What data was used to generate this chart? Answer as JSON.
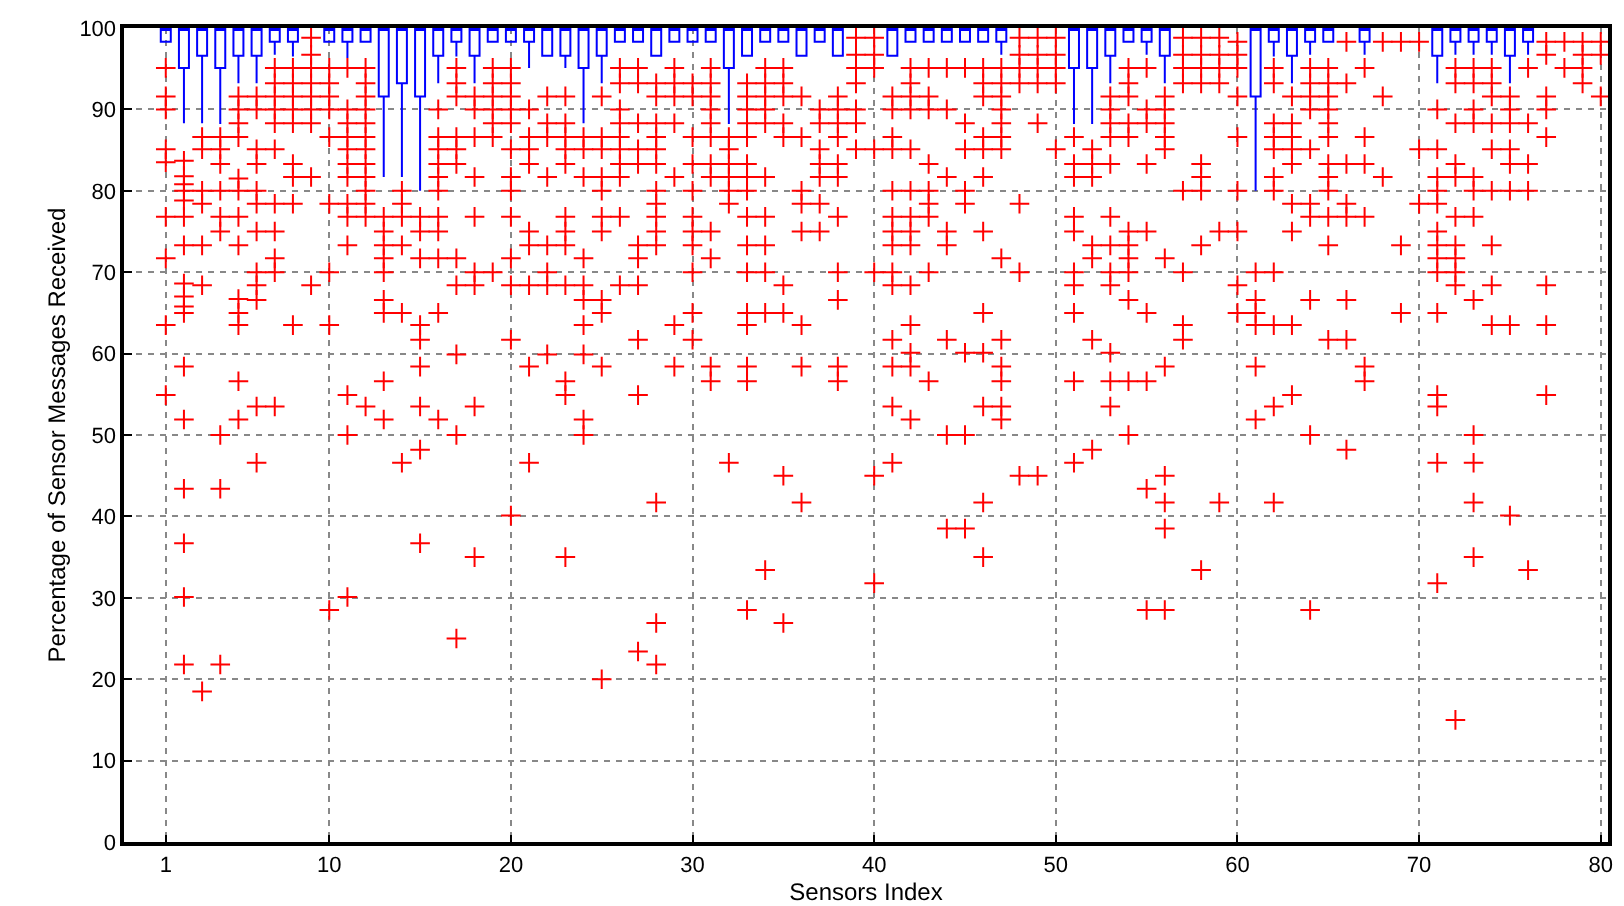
{
  "chart_data": {
    "type": "box",
    "xlabel": "Sensors Index",
    "ylabel": "Percentage of Sensor Messages Received",
    "xlim": [
      -1.3,
      80.4
    ],
    "xticks": [
      1,
      10,
      20,
      30,
      40,
      50,
      60,
      70,
      80
    ],
    "ylim": [
      0,
      100
    ],
    "yticks": [
      0,
      10,
      20,
      30,
      40,
      50,
      60,
      70,
      80,
      90,
      100
    ],
    "grid": true,
    "marker": "cross",
    "series": [
      {
        "color": "#0000ff",
        "x": [
          1,
          2,
          3,
          4,
          5,
          6,
          7,
          8,
          10,
          11,
          12,
          13,
          14,
          15,
          16,
          17,
          18,
          19,
          20,
          21,
          22,
          23,
          24,
          25,
          26,
          27,
          28,
          29,
          30,
          31,
          32,
          33,
          34,
          35,
          36,
          37,
          38,
          41,
          42,
          43,
          44,
          45,
          46,
          47,
          51,
          52,
          53,
          54,
          55,
          56,
          61,
          62,
          63,
          64,
          65,
          67,
          71,
          72,
          73,
          74,
          75,
          76
        ],
        "boxes": [
          {
            "low": 98.3,
            "q1": 98.3,
            "median": 100,
            "q3": 100
          },
          {
            "low": 88.3,
            "q1": 95.1,
            "median": 100,
            "q3": 100
          },
          {
            "low": 88.3,
            "q1": 96.6,
            "median": 100,
            "q3": 100
          },
          {
            "low": 88.2,
            "q1": 95.1,
            "median": 100,
            "q3": 100
          },
          {
            "low": 93.2,
            "q1": 96.6,
            "median": 100,
            "q3": 100
          },
          {
            "low": 93.2,
            "q1": 96.6,
            "median": 100,
            "q3": 100
          },
          {
            "low": 96.7,
            "q1": 98.3,
            "median": 100,
            "q3": 100
          },
          {
            "low": 96.5,
            "q1": 98.3,
            "median": 100,
            "q3": 100
          },
          {
            "low": 98.3,
            "q1": 98.3,
            "median": 100,
            "q3": 100
          },
          {
            "low": 96.3,
            "q1": 98.3,
            "median": 100,
            "q3": 100
          },
          {
            "low": 98.3,
            "q1": 98.3,
            "median": 100,
            "q3": 100
          },
          {
            "low": 81.7,
            "q1": 91.6,
            "median": 100,
            "q3": 100
          },
          {
            "low": 81.7,
            "q1": 93.2,
            "median": 100,
            "q3": 100
          },
          {
            "low": 80.0,
            "q1": 91.6,
            "median": 100,
            "q3": 100
          },
          {
            "low": 93.2,
            "q1": 96.6,
            "median": 100,
            "q3": 100
          },
          {
            "low": 96.5,
            "q1": 98.3,
            "median": 100,
            "q3": 100
          },
          {
            "low": 93.2,
            "q1": 96.6,
            "median": 100,
            "q3": 100
          },
          {
            "low": 98.3,
            "q1": 98.3,
            "median": 100,
            "q3": 100
          },
          {
            "low": 98.3,
            "q1": 98.3,
            "median": 100,
            "q3": 100
          },
          {
            "low": 95.1,
            "q1": 98.3,
            "median": 100,
            "q3": 100
          },
          {
            "low": 96.6,
            "q1": 96.6,
            "median": 100,
            "q3": 100
          },
          {
            "low": 95.1,
            "q1": 96.6,
            "median": 100,
            "q3": 100
          },
          {
            "low": 88.3,
            "q1": 95.1,
            "median": 100,
            "q3": 100
          },
          {
            "low": 93.2,
            "q1": 96.6,
            "median": 100,
            "q3": 100
          },
          {
            "low": 98.3,
            "q1": 98.3,
            "median": 100,
            "q3": 100
          },
          {
            "low": 98.3,
            "q1": 98.3,
            "median": 100,
            "q3": 100
          },
          {
            "low": 96.6,
            "q1": 96.6,
            "median": 100,
            "q3": 100
          },
          {
            "low": 98.3,
            "q1": 98.3,
            "median": 100,
            "q3": 100
          },
          {
            "low": 98.3,
            "q1": 98.3,
            "median": 100,
            "q3": 100
          },
          {
            "low": 98.3,
            "q1": 98.3,
            "median": 100,
            "q3": 100
          },
          {
            "low": 88.2,
            "q1": 95.1,
            "median": 100,
            "q3": 100
          },
          {
            "low": 96.6,
            "q1": 96.6,
            "median": 100,
            "q3": 100
          },
          {
            "low": 98.3,
            "q1": 98.3,
            "median": 100,
            "q3": 100
          },
          {
            "low": 98.3,
            "q1": 98.3,
            "median": 100,
            "q3": 100
          },
          {
            "low": 96.6,
            "q1": 96.6,
            "median": 100,
            "q3": 100
          },
          {
            "low": 98.3,
            "q1": 98.3,
            "median": 100,
            "q3": 100
          },
          {
            "low": 96.6,
            "q1": 96.6,
            "median": 100,
            "q3": 100
          },
          {
            "low": 96.6,
            "q1": 96.6,
            "median": 100,
            "q3": 100
          },
          {
            "low": 98.3,
            "q1": 98.3,
            "median": 100,
            "q3": 100
          },
          {
            "low": 98.3,
            "q1": 98.3,
            "median": 100,
            "q3": 100
          },
          {
            "low": 98.3,
            "q1": 98.3,
            "median": 100,
            "q3": 100
          },
          {
            "low": 98.3,
            "q1": 98.3,
            "median": 100,
            "q3": 100
          },
          {
            "low": 98.3,
            "q1": 98.3,
            "median": 100,
            "q3": 100
          },
          {
            "low": 96.7,
            "q1": 98.3,
            "median": 100,
            "q3": 100
          },
          {
            "low": 88.2,
            "q1": 95.1,
            "median": 100,
            "q3": 100
          },
          {
            "low": 88.2,
            "q1": 95.1,
            "median": 100,
            "q3": 100
          },
          {
            "low": 93.2,
            "q1": 96.6,
            "median": 100,
            "q3": 100
          },
          {
            "low": 98.3,
            "q1": 98.3,
            "median": 100,
            "q3": 100
          },
          {
            "low": 96.7,
            "q1": 98.3,
            "median": 100,
            "q3": 100
          },
          {
            "low": 93.2,
            "q1": 96.6,
            "median": 100,
            "q3": 100
          },
          {
            "low": 80.0,
            "q1": 91.6,
            "median": 100,
            "q3": 100
          },
          {
            "low": 96.5,
            "q1": 98.3,
            "median": 100,
            "q3": 100
          },
          {
            "low": 93.2,
            "q1": 96.6,
            "median": 100,
            "q3": 100
          },
          {
            "low": 96.7,
            "q1": 98.3,
            "median": 100,
            "q3": 100
          },
          {
            "low": 98.3,
            "q1": 98.3,
            "median": 100,
            "q3": 100
          },
          {
            "low": 96.7,
            "q1": 98.3,
            "median": 100,
            "q3": 100
          },
          {
            "low": 93.2,
            "q1": 96.6,
            "median": 100,
            "q3": 100
          },
          {
            "low": 96.7,
            "q1": 98.3,
            "median": 100,
            "q3": 100
          },
          {
            "low": 96.7,
            "q1": 98.3,
            "median": 100,
            "q3": 100
          },
          {
            "low": 96.7,
            "q1": 98.3,
            "median": 100,
            "q3": 100
          },
          {
            "low": 93.2,
            "q1": 96.6,
            "median": 100,
            "q3": 100
          },
          {
            "low": 96.7,
            "q1": 98.3,
            "median": 100,
            "q3": 100
          }
        ]
      },
      {
        "type": "scatter",
        "color": "#ff0000",
        "x": [
          1,
          1,
          1,
          1,
          1,
          1,
          1,
          1,
          1,
          2,
          2,
          2,
          2,
          2,
          2,
          2,
          2,
          2,
          2,
          2,
          2,
          2,
          2,
          2,
          2,
          2,
          3,
          3,
          3,
          3,
          3,
          3,
          3,
          4,
          4,
          4,
          4,
          4,
          4,
          4,
          4,
          4,
          5,
          5,
          5,
          5,
          5,
          5,
          5,
          5,
          5,
          5,
          5,
          5,
          5,
          6,
          6,
          6,
          6,
          6,
          6,
          6,
          6,
          6,
          6,
          6,
          6,
          7,
          7,
          7,
          7,
          7,
          7,
          7,
          7,
          7,
          7,
          7,
          8,
          8,
          8,
          8,
          8,
          8,
          8,
          8,
          8,
          9,
          9,
          9,
          9,
          9,
          9,
          9,
          9,
          9,
          10,
          10,
          10,
          10,
          10,
          10,
          10,
          10,
          10,
          11,
          11,
          11,
          11,
          11,
          11,
          11,
          11,
          11,
          11,
          11,
          11,
          11,
          12,
          12,
          12,
          12,
          12,
          12,
          12,
          12,
          12,
          12,
          12,
          12,
          12,
          13,
          13,
          13,
          13,
          13,
          13,
          13,
          13,
          13,
          14,
          14,
          14,
          14,
          14,
          14,
          15,
          15,
          15,
          15,
          15,
          15,
          15,
          15,
          15,
          16,
          16,
          16,
          16,
          16,
          16,
          16,
          16,
          16,
          16,
          16,
          17,
          17,
          17,
          17,
          17,
          17,
          17,
          17,
          17,
          17,
          17,
          18,
          18,
          18,
          18,
          18,
          18,
          18,
          18,
          18,
          19,
          19,
          19,
          19,
          19,
          19,
          19,
          20,
          20,
          20,
          20,
          20,
          20,
          20,
          20,
          20,
          20,
          20,
          20,
          20,
          21,
          21,
          21,
          21,
          21,
          21,
          21,
          21,
          21,
          22,
          22,
          22,
          22,
          22,
          22,
          22,
          22,
          23,
          23,
          23,
          23,
          23,
          23,
          23,
          23,
          23,
          23,
          23,
          23,
          24,
          24,
          24,
          24,
          24,
          24,
          24,
          24,
          24,
          24,
          25,
          25,
          25,
          25,
          25,
          25,
          25,
          25,
          25,
          25,
          25,
          26,
          26,
          26,
          26,
          26,
          26,
          26,
          26,
          26,
          26,
          27,
          27,
          27,
          27,
          27,
          27,
          27,
          27,
          27,
          27,
          27,
          28,
          28,
          28,
          28,
          28,
          28,
          28,
          28,
          28,
          28,
          28,
          28,
          28,
          28,
          29,
          29,
          29,
          29,
          29,
          29,
          29,
          30,
          30,
          30,
          30,
          30,
          30,
          30,
          30,
          30,
          30,
          30,
          31,
          31,
          31,
          31,
          31,
          31,
          31,
          31,
          31,
          31,
          31,
          31,
          32,
          32,
          32,
          32,
          32,
          32,
          32,
          33,
          33,
          33,
          33,
          33,
          33,
          33,
          33,
          33,
          33,
          33,
          33,
          33,
          33,
          33,
          33,
          34,
          34,
          34,
          34,
          34,
          34,
          34,
          34,
          34,
          34,
          34,
          35,
          35,
          35,
          35,
          35,
          35,
          35,
          35,
          35,
          36,
          36,
          36,
          36,
          36,
          36,
          36,
          36,
          37,
          37,
          37,
          37,
          37,
          37,
          37,
          38,
          38,
          38,
          38,
          38,
          38,
          38,
          38,
          38,
          38,
          38,
          39,
          39,
          39,
          39,
          39,
          39,
          39,
          40,
          40,
          40,
          40,
          40,
          40,
          40,
          41,
          41,
          41,
          41,
          41,
          41,
          41,
          41,
          41,
          41,
          41,
          41,
          41,
          41,
          42,
          42,
          42,
          42,
          42,
          42,
          42,
          42,
          42,
          42,
          42,
          42,
          42,
          42,
          43,
          43,
          43,
          43,
          43,
          43,
          43,
          43,
          43,
          44,
          44,
          44,
          44,
          44,
          44,
          44,
          44,
          45,
          45,
          45,
          45,
          45,
          45,
          45,
          45,
          46,
          46,
          46,
          46,
          46,
          46,
          46,
          46,
          46,
          46,
          46,
          46,
          47,
          47,
          47,
          47,
          47,
          47,
          47,
          47,
          47,
          47,
          47,
          47,
          47,
          48,
          48,
          48,
          48,
          48,
          48,
          48,
          49,
          49,
          49,
          49,
          49,
          49,
          50,
          50,
          50,
          50,
          50,
          51,
          51,
          51,
          51,
          51,
          51,
          51,
          51,
          51,
          51,
          52,
          52,
          52,
          52,
          52,
          52,
          52,
          53,
          53,
          53,
          53,
          53,
          53,
          53,
          53,
          53,
          53,
          53,
          53,
          54,
          54,
          54,
          54,
          54,
          54,
          54,
          54,
          54,
          54,
          54,
          54,
          55,
          55,
          55,
          55,
          55,
          55,
          55,
          55,
          55,
          56,
          56,
          56,
          56,
          56,
          56,
          56,
          56,
          56,
          56,
          56,
          57,
          57,
          57,
          57,
          57,
          57,
          57,
          57,
          58,
          58,
          58,
          58,
          58,
          58,
          58,
          58,
          58,
          59,
          59,
          59,
          59,
          59,
          59,
          60,
          60,
          60,
          60,
          60,
          60,
          60,
          60,
          60,
          61,
          61,
          61,
          61,
          61,
          61,
          62,
          62,
          62,
          62,
          62,
          62,
          62,
          62,
          62,
          62,
          62,
          63,
          63,
          63,
          63,
          63,
          63,
          63,
          63,
          63,
          64,
          64,
          64,
          64,
          64,
          64,
          64,
          64,
          64,
          64,
          65,
          65,
          65,
          65,
          65,
          65,
          65,
          65,
          65,
          65,
          65,
          65,
          66,
          66,
          66,
          66,
          66,
          66,
          66,
          66,
          67,
          67,
          67,
          67,
          67,
          67,
          68,
          68,
          68,
          69,
          69,
          69,
          70,
          70,
          70,
          71,
          71,
          71,
          71,
          71,
          71,
          71,
          71,
          71,
          71,
          71,
          71,
          71,
          71,
          72,
          72,
          72,
          72,
          72,
          72,
          72,
          72,
          72,
          72,
          72,
          73,
          73,
          73,
          73,
          73,
          73,
          73,
          73,
          73,
          73,
          73,
          73,
          74,
          74,
          74,
          74,
          74,
          74,
          74,
          74,
          74,
          75,
          75,
          75,
          75,
          75,
          75,
          75,
          75,
          76,
          76,
          76,
          76,
          76,
          77,
          77,
          77,
          77,
          77,
          77,
          77,
          77,
          78,
          78,
          79,
          79,
          79,
          79,
          80,
          80,
          80
        ],
        "values": [
          95.1,
          91.6,
          90.0,
          85.1,
          83.5,
          76.8,
          71.7,
          63.5,
          54.9,
          83.7,
          81.8,
          80.8,
          80.0,
          78.8,
          76.8,
          73.3,
          68.6,
          67.0,
          65.8,
          65.0,
          58.4,
          51.9,
          43.4,
          36.7,
          30.1,
          21.8,
          86.6,
          85.1,
          80.0,
          78.4,
          73.3,
          68.4,
          18.5,
          86.6,
          85.1,
          83.3,
          80.0,
          76.8,
          75.0,
          50.0,
          43.4,
          21.8,
          91.6,
          90.0,
          88.3,
          86.6,
          81.5,
          80.0,
          76.8,
          73.3,
          66.7,
          65.0,
          63.5,
          56.6,
          51.9,
          91.6,
          90.0,
          85.1,
          83.3,
          80.0,
          78.4,
          75.0,
          70.0,
          68.4,
          66.6,
          53.5,
          46.6,
          95.1,
          93.2,
          91.6,
          90.0,
          88.3,
          85.1,
          78.4,
          75.0,
          71.7,
          70.0,
          53.5,
          95.1,
          93.2,
          91.6,
          90.0,
          88.3,
          83.3,
          81.7,
          78.4,
          63.5,
          98.8,
          96.7,
          95.1,
          93.2,
          91.6,
          90.0,
          88.3,
          81.7,
          68.4,
          95.1,
          93.2,
          91.6,
          90.0,
          86.6,
          78.4,
          70.0,
          63.5,
          28.5,
          95.1,
          90.0,
          88.3,
          86.6,
          85.1,
          83.3,
          81.7,
          78.4,
          76.8,
          73.3,
          54.9,
          50.0,
          30.1,
          95.1,
          93.2,
          91.6,
          90.0,
          88.3,
          86.6,
          85.1,
          83.3,
          81.7,
          80.0,
          78.4,
          76.8,
          53.5,
          76.8,
          75.0,
          73.3,
          71.7,
          70.0,
          66.6,
          65.0,
          56.6,
          51.9,
          80.0,
          78.4,
          76.8,
          73.3,
          65.0,
          46.6,
          76.8,
          75.0,
          71.7,
          63.5,
          61.7,
          58.4,
          53.5,
          48.2,
          36.7,
          90.0,
          86.6,
          85.1,
          83.3,
          81.7,
          80.0,
          76.8,
          75.0,
          71.7,
          65.0,
          51.9,
          95.1,
          93.2,
          91.6,
          86.6,
          85.1,
          83.3,
          71.7,
          68.4,
          59.9,
          50.0,
          25.0,
          91.6,
          90.0,
          86.6,
          81.7,
          76.8,
          70.0,
          68.4,
          53.5,
          35.0,
          95.1,
          93.2,
          91.6,
          90.0,
          88.3,
          86.6,
          70.0,
          95.1,
          93.2,
          91.6,
          90.0,
          88.3,
          85.1,
          81.7,
          80.0,
          76.8,
          71.7,
          68.4,
          61.7,
          40.1,
          90.0,
          86.6,
          85.1,
          83.3,
          75.0,
          73.3,
          68.4,
          58.4,
          46.6,
          91.6,
          88.3,
          86.6,
          81.7,
          73.3,
          70.0,
          68.4,
          59.9,
          91.6,
          88.3,
          86.6,
          85.1,
          83.3,
          76.8,
          75.0,
          73.3,
          68.4,
          56.6,
          54.9,
          35.0,
          86.6,
          85.1,
          81.7,
          71.7,
          68.4,
          66.6,
          63.5,
          59.9,
          51.9,
          50.0,
          91.6,
          86.6,
          85.1,
          81.7,
          80.0,
          76.8,
          75.0,
          66.6,
          65.0,
          58.4,
          20.0,
          95.1,
          93.2,
          90.0,
          88.3,
          86.6,
          85.1,
          83.3,
          81.7,
          76.8,
          68.4,
          95.1,
          93.2,
          88.3,
          85.1,
          83.3,
          73.3,
          71.7,
          68.4,
          61.7,
          54.9,
          23.4,
          93.2,
          91.6,
          88.3,
          86.6,
          85.1,
          83.3,
          80.0,
          78.4,
          76.8,
          75.0,
          73.3,
          41.7,
          26.9,
          21.8,
          95.1,
          93.2,
          91.6,
          88.3,
          81.7,
          63.5,
          58.4,
          93.2,
          91.6,
          86.6,
          83.3,
          80.0,
          76.8,
          75.0,
          73.3,
          70.0,
          65.0,
          61.7,
          95.1,
          93.2,
          91.6,
          90.0,
          88.3,
          86.6,
          83.3,
          81.7,
          75.0,
          71.7,
          58.4,
          56.6,
          86.6,
          85.1,
          83.3,
          81.7,
          80.0,
          78.4,
          46.6,
          93.2,
          91.6,
          90.0,
          88.3,
          86.6,
          83.3,
          81.7,
          80.0,
          76.8,
          73.3,
          70.0,
          65.0,
          63.5,
          58.4,
          56.6,
          28.5,
          95.1,
          93.2,
          91.6,
          90.0,
          88.3,
          81.7,
          76.8,
          73.3,
          70.0,
          65.0,
          33.4,
          95.1,
          93.2,
          91.6,
          88.3,
          86.6,
          68.4,
          65.0,
          45.0,
          26.9,
          91.6,
          86.6,
          80.0,
          78.4,
          75.0,
          63.5,
          58.4,
          41.7,
          90.0,
          88.3,
          85.1,
          83.3,
          81.7,
          78.4,
          75.0,
          91.6,
          90.0,
          88.3,
          86.6,
          83.3,
          81.7,
          76.8,
          70.0,
          66.6,
          58.4,
          56.6,
          98.8,
          96.7,
          95.1,
          93.2,
          90.0,
          88.3,
          85.1,
          98.8,
          96.7,
          95.1,
          85.1,
          70.0,
          45.0,
          31.8,
          91.6,
          90.0,
          86.6,
          85.1,
          80.0,
          76.8,
          75.0,
          73.3,
          70.0,
          68.4,
          61.7,
          58.4,
          53.5,
          46.6,
          95.1,
          93.2,
          91.6,
          90.0,
          85.1,
          80.0,
          76.8,
          75.0,
          73.3,
          68.4,
          63.5,
          60.1,
          58.4,
          51.9,
          95.1,
          91.6,
          90.0,
          83.3,
          80.0,
          78.4,
          76.8,
          70.0,
          56.6,
          95.1,
          90.0,
          81.7,
          75.0,
          73.3,
          61.7,
          50.0,
          38.5,
          95.1,
          88.3,
          85.1,
          80.0,
          78.4,
          60.1,
          50.0,
          38.5,
          95.1,
          93.2,
          91.6,
          86.6,
          85.1,
          81.7,
          75.0,
          65.0,
          60.1,
          53.5,
          41.7,
          35.0,
          95.1,
          93.2,
          91.6,
          90.0,
          88.3,
          86.6,
          85.1,
          71.7,
          61.7,
          58.4,
          56.6,
          53.5,
          51.9,
          98.8,
          96.7,
          95.1,
          93.2,
          78.4,
          70.0,
          45.0,
          98.8,
          96.7,
          95.1,
          93.2,
          88.3,
          45.0,
          98.8,
          96.7,
          95.1,
          93.2,
          85.1,
          86.6,
          83.3,
          81.7,
          76.8,
          75.0,
          70.0,
          68.4,
          65.0,
          56.6,
          46.6,
          85.1,
          83.3,
          81.7,
          73.3,
          71.7,
          61.7,
          48.2,
          91.6,
          90.0,
          88.3,
          86.6,
          83.3,
          76.8,
          73.3,
          70.0,
          68.4,
          60.1,
          56.6,
          53.5,
          95.1,
          93.2,
          91.6,
          88.3,
          86.6,
          75.0,
          73.3,
          71.7,
          70.0,
          66.6,
          56.6,
          50.0,
          95.1,
          90.0,
          88.3,
          83.3,
          75.0,
          65.0,
          56.6,
          43.4,
          28.5,
          91.6,
          90.0,
          88.3,
          86.6,
          85.1,
          71.7,
          58.4,
          45.0,
          41.7,
          38.5,
          28.5,
          98.8,
          96.7,
          95.1,
          93.2,
          80.0,
          70.0,
          63.5,
          61.7,
          98.8,
          96.7,
          95.1,
          93.2,
          83.3,
          81.7,
          80.0,
          73.3,
          33.4,
          98.8,
          96.7,
          95.1,
          93.2,
          75.0,
          41.7,
          98.3,
          96.7,
          95.1,
          91.6,
          86.6,
          80.0,
          75.0,
          68.4,
          65.0,
          70.0,
          66.6,
          65.0,
          63.5,
          58.4,
          51.9,
          95.1,
          93.2,
          88.3,
          86.6,
          85.1,
          81.7,
          80.0,
          70.0,
          63.5,
          53.5,
          41.7,
          91.6,
          88.3,
          86.6,
          85.1,
          83.3,
          78.4,
          75.0,
          63.5,
          54.9,
          95.1,
          93.2,
          91.6,
          90.0,
          85.1,
          78.4,
          76.8,
          66.6,
          50.0,
          28.5,
          95.1,
          93.2,
          91.6,
          90.0,
          88.3,
          86.6,
          83.3,
          81.7,
          80.0,
          76.8,
          73.3,
          61.7,
          98.3,
          93.2,
          83.3,
          78.4,
          76.8,
          66.6,
          61.7,
          48.2,
          95.1,
          86.6,
          83.3,
          76.8,
          58.4,
          56.6,
          98.3,
          91.6,
          81.7,
          98.3,
          73.3,
          65.0,
          98.3,
          85.1,
          78.4,
          90.0,
          85.1,
          81.7,
          80.0,
          78.4,
          75.0,
          73.3,
          71.7,
          70.0,
          65.0,
          54.9,
          53.5,
          46.6,
          31.8,
          95.1,
          93.2,
          88.3,
          83.3,
          81.7,
          76.8,
          73.3,
          71.7,
          70.0,
          68.4,
          15.0,
          95.1,
          93.2,
          90.0,
          88.3,
          81.7,
          80.0,
          76.8,
          66.6,
          50.0,
          46.6,
          41.7,
          35.0,
          95.1,
          93.2,
          91.6,
          88.3,
          85.1,
          80.0,
          73.3,
          68.4,
          63.5,
          91.6,
          90.0,
          88.3,
          85.1,
          83.3,
          80.0,
          63.5,
          40.1,
          95.1,
          88.3,
          83.3,
          80.0,
          33.4,
          98.3,
          96.7,
          91.6,
          90.0,
          86.6,
          68.4,
          63.5,
          54.9,
          98.3,
          95.1,
          98.3,
          96.7,
          95.1,
          93.2,
          98.3,
          96.7,
          91.6
        ]
      }
    ]
  }
}
